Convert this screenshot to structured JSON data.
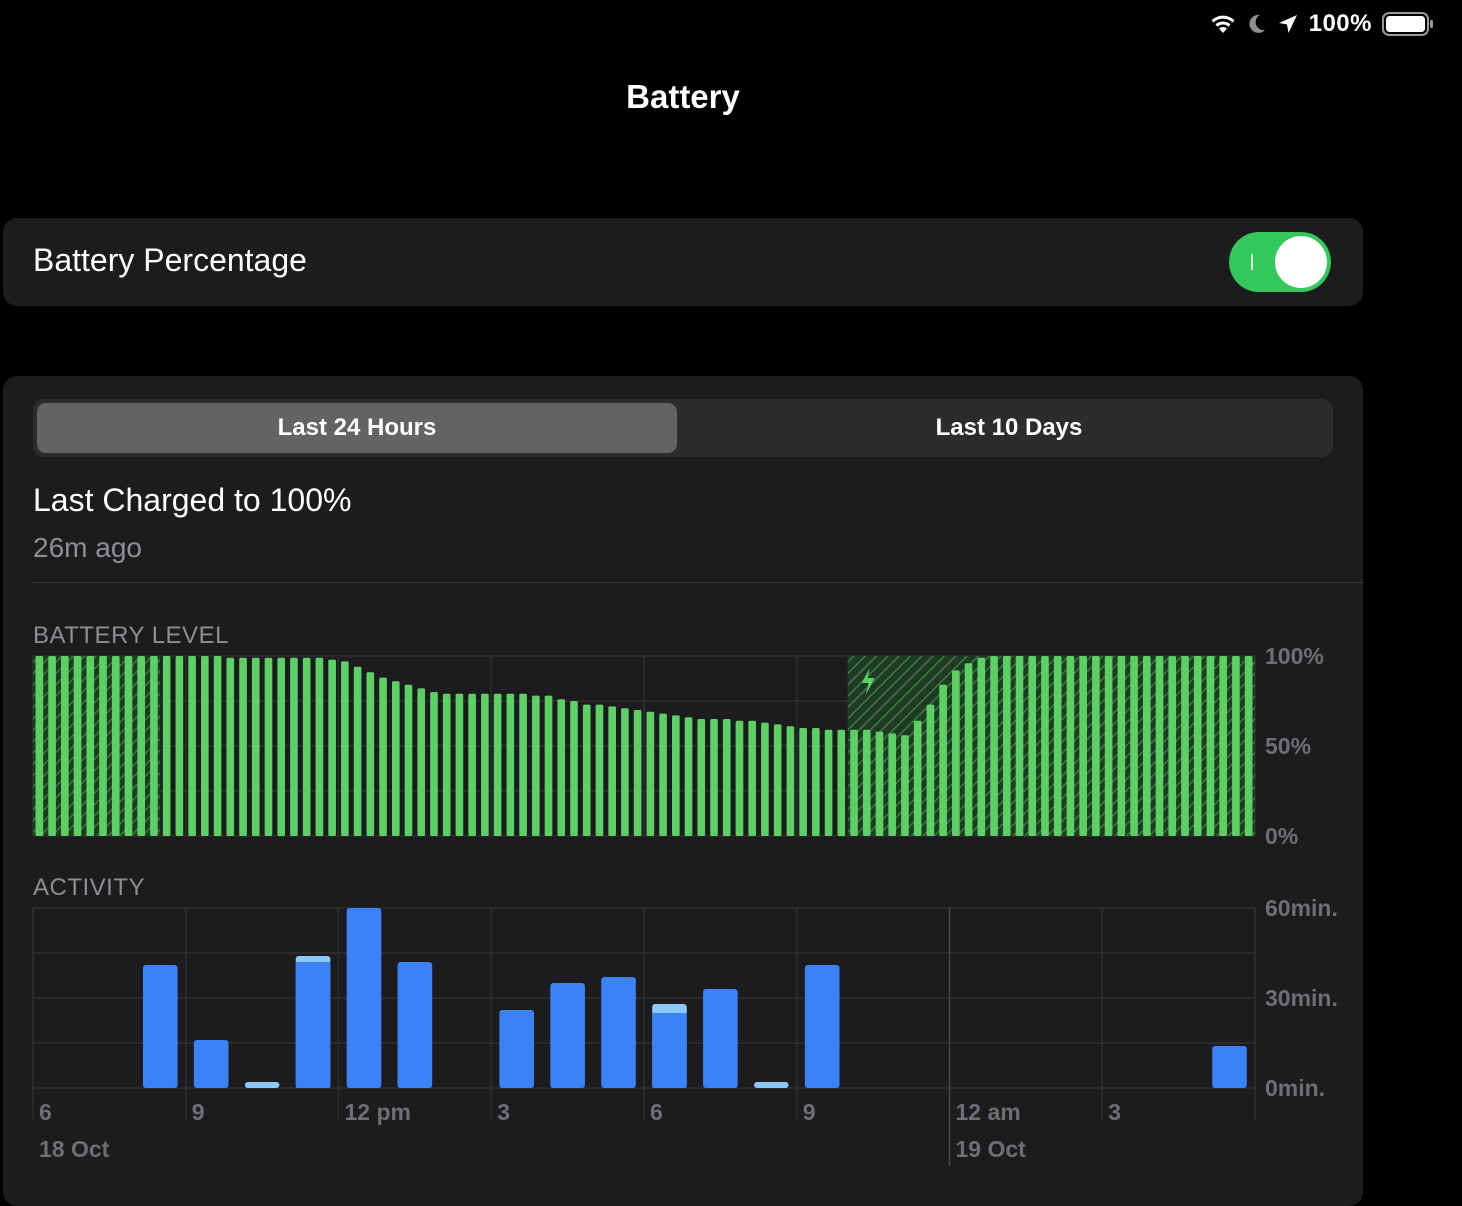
{
  "status": {
    "battery_text": "100%",
    "icons": [
      "wifi-icon",
      "moon-icon",
      "location-arrow-icon",
      "battery-icon"
    ]
  },
  "nav": {
    "title": "Battery"
  },
  "battery_percentage": {
    "label": "Battery Percentage",
    "enabled": true
  },
  "tabs": [
    {
      "label": "Last 24 Hours",
      "selected": true
    },
    {
      "label": "Last 10 Days",
      "selected": false
    }
  ],
  "last_charged": {
    "title": "Last Charged to 100%",
    "subtitle": "26m ago"
  },
  "colors": {
    "battery_green": "#5dd065",
    "activity_blue": "#3b82f6",
    "activity_light_blue": "#8cc8f8",
    "toggle_green": "#34c759"
  },
  "chart_data": [
    {
      "type": "bar",
      "title": "BATTERY LEVEL",
      "y_ticks": [
        "100%",
        "50%",
        "0%"
      ],
      "ylim": [
        0,
        100
      ],
      "unit": "%",
      "charging_marker": true,
      "values": [
        100,
        100,
        100,
        100,
        100,
        100,
        100,
        100,
        100,
        100,
        100,
        100,
        100,
        100,
        100,
        99,
        99,
        99,
        99,
        99,
        99,
        99,
        99,
        98,
        97,
        94,
        91,
        88,
        86,
        84,
        82,
        80,
        79,
        79,
        79,
        79,
        79,
        79,
        79,
        78,
        78,
        76,
        75,
        73,
        73,
        72,
        71,
        70,
        69,
        68,
        67,
        66,
        65,
        65,
        65,
        64,
        64,
        63,
        62,
        61,
        60,
        60,
        59,
        59,
        59,
        59,
        58,
        57,
        56,
        64,
        73,
        84,
        92,
        96,
        99,
        100,
        100,
        100,
        100,
        100,
        100,
        100,
        100,
        100,
        100,
        100,
        100,
        100,
        100,
        100,
        100,
        100,
        100,
        100,
        100,
        100
      ],
      "charging_from_index": 64
    },
    {
      "type": "bar",
      "title": "ACTIVITY",
      "y_ticks": [
        "60min.",
        "30min.",
        "0min."
      ],
      "ylim": [
        0,
        60
      ],
      "unit": "min",
      "x_tick_labels": [
        "6",
        "9",
        "12 pm",
        "3",
        "6",
        "9",
        "12 am",
        "3"
      ],
      "date_labels": [
        "18 Oct",
        "19 Oct"
      ],
      "series": [
        {
          "name": "",
          "values": [
            0,
            0,
            41,
            16,
            0,
            42,
            60,
            42,
            0,
            26,
            35,
            37,
            25,
            33,
            0,
            41,
            0,
            0,
            0,
            0,
            0,
            0,
            0,
            14
          ]
        },
        {
          "name": "",
          "values": [
            0,
            0,
            0,
            0,
            2,
            2,
            0,
            0,
            0,
            0,
            0,
            0,
            3,
            0,
            2,
            0,
            0,
            0,
            0,
            0,
            0,
            0,
            0,
            0
          ]
        }
      ]
    }
  ]
}
